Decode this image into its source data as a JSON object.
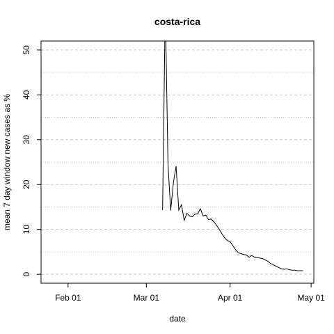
{
  "chart_data": {
    "type": "line",
    "title": "costa-rica",
    "xlabel": "date",
    "ylabel": "mean  7  day window new cases as %",
    "x_ticks": [
      {
        "date": "2020-02-01",
        "label": "Feb 01"
      },
      {
        "date": "2020-03-01",
        "label": "Mar 01"
      },
      {
        "date": "2020-04-01",
        "label": "Apr 01"
      },
      {
        "date": "2020-05-01",
        "label": "May 01"
      }
    ],
    "y_ticks": [
      0,
      10,
      20,
      30,
      40,
      50
    ],
    "xlim": [
      "2020-01-22",
      "2020-05-02"
    ],
    "ylim": [
      -2,
      52
    ],
    "grid": {
      "major_dashed": [
        0,
        10,
        20,
        30,
        40,
        50
      ],
      "minor_dotted": [
        5,
        15,
        25,
        35,
        45
      ]
    },
    "series": [
      {
        "color": "#000000",
        "x": [
          "2020-03-07",
          "2020-03-08",
          "2020-03-09",
          "2020-03-10",
          "2020-03-11",
          "2020-03-12",
          "2020-03-13",
          "2020-03-14",
          "2020-03-15",
          "2020-03-16",
          "2020-03-17",
          "2020-03-18",
          "2020-03-19",
          "2020-03-20",
          "2020-03-21",
          "2020-03-22",
          "2020-03-23",
          "2020-03-24",
          "2020-03-25",
          "2020-03-26",
          "2020-03-27",
          "2020-03-28",
          "2020-03-29",
          "2020-03-30",
          "2020-03-31",
          "2020-04-01",
          "2020-04-02",
          "2020-04-03",
          "2020-04-04",
          "2020-04-05",
          "2020-04-06",
          "2020-04-07",
          "2020-04-08",
          "2020-04-09",
          "2020-04-10",
          "2020-04-11",
          "2020-04-12",
          "2020-04-13",
          "2020-04-14",
          "2020-04-15",
          "2020-04-16",
          "2020-04-17",
          "2020-04-18",
          "2020-04-19",
          "2020-04-20",
          "2020-04-21",
          "2020-04-22",
          "2020-04-23",
          "2020-04-24",
          "2020-04-25",
          "2020-04-26",
          "2020-04-27",
          "2020-04-28"
        ],
        "y": [
          14.3,
          60,
          24.6,
          14.2,
          20.4,
          24.1,
          14.3,
          15.5,
          12.0,
          13.6,
          13.0,
          12.8,
          13.4,
          13.5,
          14.6,
          13.0,
          13.2,
          12.2,
          12.3,
          11.7,
          10.9,
          10.0,
          9.0,
          8.1,
          7.5,
          7.3,
          6.4,
          5.5,
          4.8,
          4.6,
          4.4,
          4.3,
          3.8,
          4.2,
          3.8,
          3.7,
          3.6,
          3.5,
          3.2,
          2.9,
          2.4,
          2.1,
          1.8,
          1.5,
          1.2,
          1.1,
          1.2,
          1.0,
          0.9,
          0.9,
          0.8,
          0.8,
          0.8
        ]
      }
    ]
  }
}
